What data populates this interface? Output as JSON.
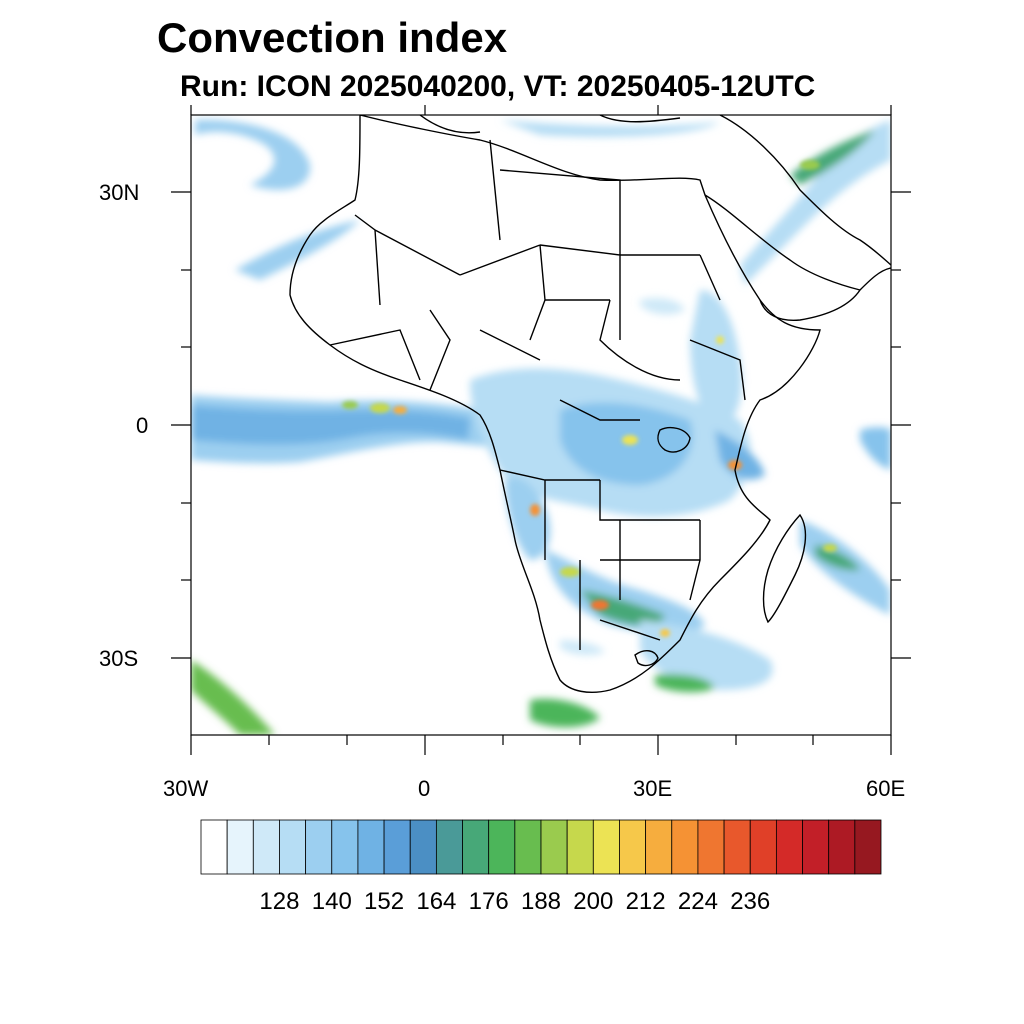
{
  "title": "Convection index",
  "subtitle": "Run: ICON 2025040200,  VT: 20250405-12UTC",
  "axes": {
    "lon_ticks": [
      "30W",
      "0",
      "30E",
      "60E"
    ],
    "lat_ticks": [
      "30N",
      "0",
      "30S"
    ]
  },
  "colorbar": {
    "labels": [
      "128",
      "140",
      "152",
      "164",
      "176",
      "188",
      "200",
      "212",
      "224",
      "236"
    ],
    "colors": [
      "#ffffff",
      "#e6f4fc",
      "#cfe9f8",
      "#b6ddf4",
      "#9ccff0",
      "#86c3ec",
      "#6fb2e4",
      "#5a9ed8",
      "#4b8fc4",
      "#4a9a98",
      "#47a878",
      "#4cb55a",
      "#68bd4f",
      "#9acb4e",
      "#c6d84c",
      "#ece354",
      "#f6c84a",
      "#f6ad3e",
      "#f59234",
      "#ef7630",
      "#e8582c",
      "#e04028",
      "#d42a28",
      "#c21f28",
      "#ad1a24",
      "#961820"
    ]
  }
}
